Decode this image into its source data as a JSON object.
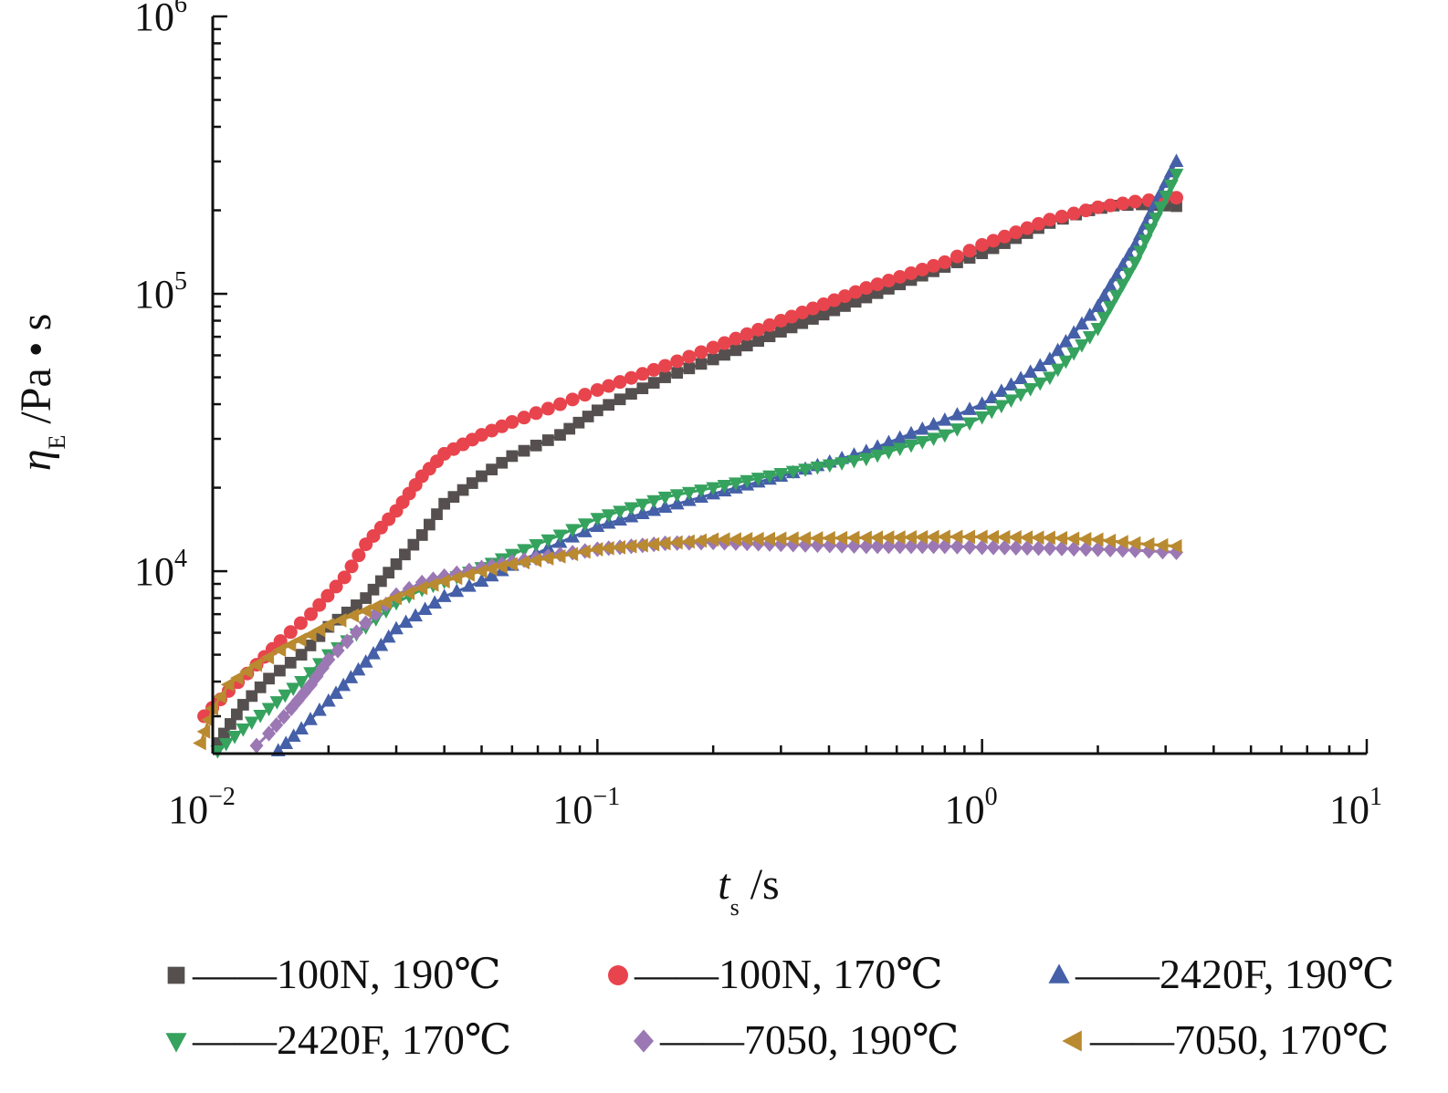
{
  "chart_data": {
    "type": "scatter",
    "title": "",
    "x_scale": "log",
    "y_scale": "log",
    "xlim": [
      0.01,
      10
    ],
    "ylim": [
      2200,
      1000000
    ],
    "x_ticks": [
      {
        "value": 0.01,
        "base": "10",
        "exp": "−2"
      },
      {
        "value": 0.1,
        "base": "10",
        "exp": "−1"
      },
      {
        "value": 1,
        "base": "10",
        "exp": "0"
      },
      {
        "value": 10,
        "base": "10",
        "exp": "1"
      }
    ],
    "y_ticks": [
      {
        "value": 10000,
        "base": "10",
        "exp": "4"
      },
      {
        "value": 100000,
        "base": "10",
        "exp": "5"
      },
      {
        "value": 1000000,
        "base": "10",
        "exp": "6"
      }
    ],
    "xlabel": {
      "symbol": "t",
      "sub": "s",
      "unit": " /s"
    },
    "ylabel": {
      "symbol": "η",
      "sub": "E",
      "unit": " /Pa • s"
    },
    "grid": false,
    "legend_position": "bottom",
    "legend_line_glyph": "——",
    "series": [
      {
        "name": "100N, 190℃",
        "color": "#55504f",
        "marker": "square",
        "points": [
          [
            0.0103,
            2400
          ],
          [
            0.012,
            3300
          ],
          [
            0.014,
            4100
          ],
          [
            0.017,
            5000
          ],
          [
            0.02,
            6300
          ],
          [
            0.025,
            8000
          ],
          [
            0.03,
            10600
          ],
          [
            0.035,
            13500
          ],
          [
            0.04,
            17500
          ],
          [
            0.05,
            22000
          ],
          [
            0.06,
            26000
          ],
          [
            0.08,
            31000
          ],
          [
            0.1,
            38000
          ],
          [
            0.15,
            50000
          ],
          [
            0.2,
            58000
          ],
          [
            0.3,
            73000
          ],
          [
            0.5,
            97000
          ],
          [
            0.8,
            125000
          ],
          [
            1.0,
            140000
          ],
          [
            1.5,
            180000
          ],
          [
            1.9,
            200000
          ],
          [
            2.2,
            208000
          ],
          [
            2.6,
            210000
          ],
          [
            3.2,
            207000
          ]
        ]
      },
      {
        "name": "100N, 170℃",
        "color": "#e8444d",
        "marker": "circle",
        "points": [
          [
            0.0095,
            3000
          ],
          [
            0.011,
            3700
          ],
          [
            0.013,
            4600
          ],
          [
            0.015,
            5600
          ],
          [
            0.018,
            7000
          ],
          [
            0.022,
            9500
          ],
          [
            0.025,
            12500
          ],
          [
            0.03,
            16500
          ],
          [
            0.035,
            22000
          ],
          [
            0.04,
            26500
          ],
          [
            0.05,
            31000
          ],
          [
            0.06,
            34500
          ],
          [
            0.08,
            40000
          ],
          [
            0.1,
            45000
          ],
          [
            0.15,
            55000
          ],
          [
            0.2,
            64000
          ],
          [
            0.3,
            80000
          ],
          [
            0.5,
            105000
          ],
          [
            0.8,
            130000
          ],
          [
            1.0,
            150000
          ],
          [
            1.5,
            185000
          ],
          [
            2.0,
            205000
          ],
          [
            2.5,
            215000
          ],
          [
            3.2,
            222000
          ]
        ]
      },
      {
        "name": "2420F, 190℃",
        "color": "#4560a8",
        "marker": "triangle-up",
        "points": [
          [
            0.0148,
            2250
          ],
          [
            0.017,
            2700
          ],
          [
            0.02,
            3400
          ],
          [
            0.025,
            4700
          ],
          [
            0.03,
            6200
          ],
          [
            0.04,
            8100
          ],
          [
            0.05,
            9200
          ],
          [
            0.06,
            10500
          ],
          [
            0.08,
            12700
          ],
          [
            0.1,
            14500
          ],
          [
            0.15,
            17000
          ],
          [
            0.2,
            19000
          ],
          [
            0.3,
            22000
          ],
          [
            0.5,
            27000
          ],
          [
            0.8,
            35000
          ],
          [
            1.0,
            40000
          ],
          [
            1.5,
            58000
          ],
          [
            2.0,
            90000
          ],
          [
            2.5,
            150000
          ],
          [
            3.2,
            300000
          ]
        ]
      },
      {
        "name": "2420F, 170℃",
        "color": "#35a25e",
        "marker": "triangle-down",
        "points": [
          [
            0.0103,
            2250
          ],
          [
            0.012,
            2700
          ],
          [
            0.014,
            3200
          ],
          [
            0.017,
            4000
          ],
          [
            0.02,
            5000
          ],
          [
            0.025,
            6300
          ],
          [
            0.03,
            7700
          ],
          [
            0.035,
            8600
          ],
          [
            0.04,
            9200
          ],
          [
            0.05,
            10300
          ],
          [
            0.06,
            11500
          ],
          [
            0.08,
            13500
          ],
          [
            0.1,
            15500
          ],
          [
            0.15,
            18500
          ],
          [
            0.2,
            20000
          ],
          [
            0.3,
            22500
          ],
          [
            0.5,
            25500
          ],
          [
            0.8,
            31000
          ],
          [
            1.0,
            36000
          ],
          [
            1.5,
            50000
          ],
          [
            2.0,
            75000
          ],
          [
            2.5,
            130000
          ],
          [
            3.2,
            270000
          ]
        ]
      },
      {
        "name": "7050, 190℃",
        "color": "#9b78b4",
        "marker": "diamond",
        "points": [
          [
            0.013,
            2350
          ],
          [
            0.014,
            2600
          ],
          [
            0.016,
            3200
          ],
          [
            0.018,
            3900
          ],
          [
            0.02,
            4800
          ],
          [
            0.025,
            6500
          ],
          [
            0.03,
            8200
          ],
          [
            0.035,
            9100
          ],
          [
            0.04,
            9600
          ],
          [
            0.05,
            10300
          ],
          [
            0.06,
            10800
          ],
          [
            0.08,
            11500
          ],
          [
            0.1,
            12000
          ],
          [
            0.15,
            12600
          ],
          [
            0.2,
            12700
          ],
          [
            0.3,
            12500
          ],
          [
            0.5,
            12300
          ],
          [
            0.8,
            12300
          ],
          [
            1.0,
            12200
          ],
          [
            1.5,
            12100
          ],
          [
            2.0,
            12000
          ],
          [
            2.5,
            11900
          ],
          [
            3.2,
            11700
          ]
        ]
      },
      {
        "name": "7050, 170℃",
        "color": "#b98a30",
        "marker": "triangle-left",
        "points": [
          [
            0.0093,
            2400
          ],
          [
            0.01,
            3200
          ],
          [
            0.011,
            3900
          ],
          [
            0.013,
            4600
          ],
          [
            0.015,
            5200
          ],
          [
            0.018,
            5900
          ],
          [
            0.02,
            6400
          ],
          [
            0.025,
            7200
          ],
          [
            0.03,
            8000
          ],
          [
            0.035,
            8700
          ],
          [
            0.04,
            9200
          ],
          [
            0.05,
            10000
          ],
          [
            0.06,
            10600
          ],
          [
            0.08,
            11300
          ],
          [
            0.1,
            12000
          ],
          [
            0.15,
            12600
          ],
          [
            0.2,
            13000
          ],
          [
            0.3,
            13100
          ],
          [
            0.5,
            13200
          ],
          [
            0.8,
            13300
          ],
          [
            1.0,
            13300
          ],
          [
            1.5,
            13200
          ],
          [
            2.0,
            13000
          ],
          [
            2.5,
            12600
          ],
          [
            3.2,
            12300
          ]
        ]
      }
    ]
  }
}
